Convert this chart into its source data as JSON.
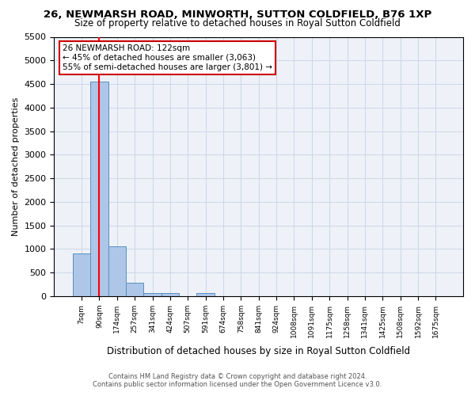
{
  "title": "26, NEWMARSH ROAD, MINWORTH, SUTTON COLDFIELD, B76 1XP",
  "subtitle": "Size of property relative to detached houses in Royal Sutton Coldfield",
  "xlabel": "Distribution of detached houses by size in Royal Sutton Coldfield",
  "ylabel": "Number of detached properties",
  "bin_labels": [
    "7sqm",
    "90sqm",
    "174sqm",
    "257sqm",
    "341sqm",
    "424sqm",
    "507sqm",
    "591sqm",
    "674sqm",
    "758sqm",
    "841sqm",
    "924sqm",
    "1008sqm",
    "1091sqm",
    "1175sqm",
    "1258sqm",
    "1341sqm",
    "1425sqm",
    "1508sqm",
    "1592sqm",
    "1675sqm"
  ],
  "bar_values": [
    900,
    4550,
    1060,
    290,
    75,
    65,
    0,
    75,
    0,
    0,
    0,
    0,
    0,
    0,
    0,
    0,
    0,
    0,
    0,
    0,
    0
  ],
  "bar_color": "#aec6e8",
  "bar_edge_color": "#5a8fc2",
  "red_line_x": 1,
  "ylim": [
    0,
    5500
  ],
  "yticks": [
    0,
    500,
    1000,
    1500,
    2000,
    2500,
    3000,
    3500,
    4000,
    4500,
    5000,
    5500
  ],
  "annotation_text": "26 NEWMARSH ROAD: 122sqm\n← 45% of detached houses are smaller (3,063)\n55% of semi-detached houses are larger (3,801) →",
  "annotation_box_color": "#ffffff",
  "annotation_box_edge": "#cc0000",
  "footer_line1": "Contains HM Land Registry data © Crown copyright and database right 2024.",
  "footer_line2": "Contains public sector information licensed under the Open Government Licence v3.0.",
  "grid_color": "#d0d8e8",
  "background_color": "#eef2f8"
}
